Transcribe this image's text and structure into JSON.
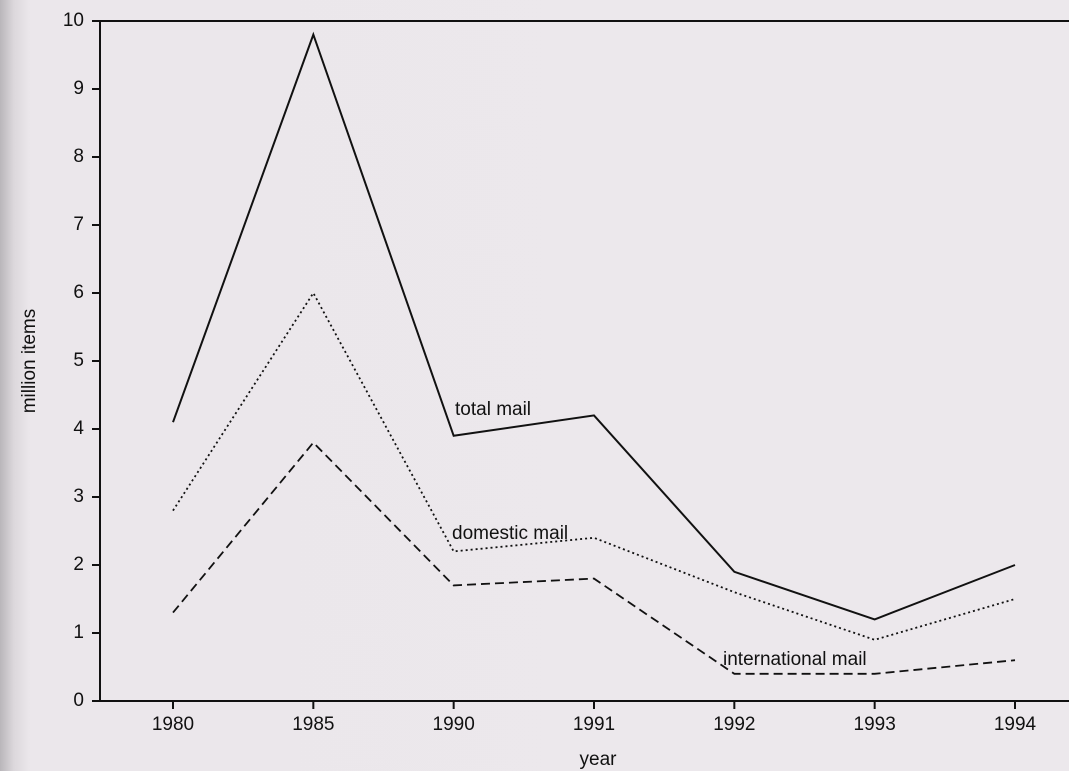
{
  "chart_data": {
    "type": "line",
    "xlabel": "year",
    "ylabel": "million items",
    "categories": [
      "1980",
      "1985",
      "1990",
      "1991",
      "1992",
      "1993",
      "1994"
    ],
    "series": [
      {
        "name": "total mail",
        "color": "#111111",
        "style": "solid",
        "values": [
          4.1,
          9.8,
          3.9,
          4.2,
          1.9,
          1.2,
          2.0
        ]
      },
      {
        "name": "domestic mail",
        "color": "#111111",
        "style": "dotted",
        "values": [
          2.8,
          6.0,
          2.2,
          2.4,
          1.6,
          0.9,
          1.5
        ]
      },
      {
        "name": "international mail",
        "color": "#111111",
        "style": "dashed",
        "values": [
          1.3,
          3.8,
          1.7,
          1.8,
          0.4,
          0.4,
          0.6
        ]
      }
    ],
    "ylim": [
      0,
      10
    ],
    "yticks": [
      0,
      1,
      2,
      3,
      4,
      5,
      6,
      7,
      8,
      9,
      10
    ]
  }
}
